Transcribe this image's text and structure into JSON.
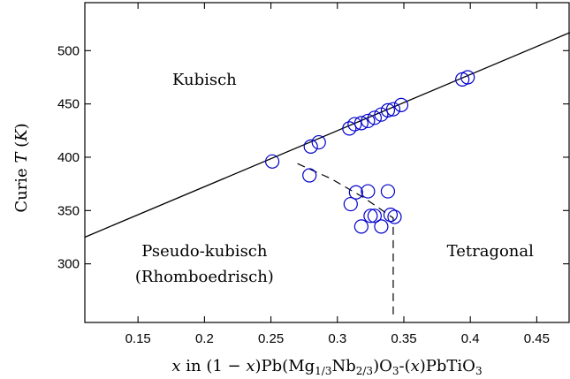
{
  "chart_data": {
    "type": "scatter",
    "xlim": [
      0.11,
      0.475
    ],
    "ylim": [
      245,
      545
    ],
    "grid": false,
    "x_ticks": [
      0.15,
      0.2,
      0.25,
      0.3,
      0.35,
      0.4,
      0.45
    ],
    "y_ticks": [
      300,
      350,
      400,
      450,
      500
    ],
    "x_tick_labels": [
      "0.15",
      "0.2",
      "0.25",
      "0.3",
      "0.35",
      "0.4",
      "0.45"
    ],
    "y_tick_labels": [
      "300",
      "350",
      "400",
      "450",
      "500"
    ],
    "xlabel": {
      "p1": "x",
      "p2": " in (1 − ",
      "p3": "x",
      "p4": ")Pb(Mg",
      "p5": "1/3",
      "p6": "Nb",
      "p7": "2/3",
      "p8": ")O",
      "p9": "3",
      "p10": "-(",
      "p11": "x",
      "p12": ")PbTiO",
      "p13": "3"
    },
    "ylabel": {
      "p1": "Curie ",
      "p2": "T",
      "p3": " (",
      "p4": "K",
      "p5": ")"
    },
    "regions": [
      {
        "label": "Kubisch",
        "x": 0.2,
        "y": 468
      },
      {
        "label": "Pseudo-kubisch",
        "x": 0.2,
        "y": 307
      },
      {
        "label": "(Rhomboedrisch)",
        "x": 0.2,
        "y": 283
      },
      {
        "label": "Tetragonal",
        "x": 0.415,
        "y": 307
      }
    ],
    "solid_line": {
      "x": [
        0.11,
        0.475
      ],
      "y": [
        325,
        517
      ]
    },
    "dashed_boundary": {
      "x": [
        0.27,
        0.295,
        0.32,
        0.342,
        0.342
      ],
      "y": [
        394,
        380,
        362,
        343,
        250
      ]
    },
    "points": [
      {
        "x": 0.251,
        "y": 396
      },
      {
        "x": 0.279,
        "y": 383
      },
      {
        "x": 0.28,
        "y": 410
      },
      {
        "x": 0.286,
        "y": 414
      },
      {
        "x": 0.309,
        "y": 427
      },
      {
        "x": 0.313,
        "y": 431
      },
      {
        "x": 0.318,
        "y": 432
      },
      {
        "x": 0.323,
        "y": 434
      },
      {
        "x": 0.328,
        "y": 437
      },
      {
        "x": 0.333,
        "y": 440
      },
      {
        "x": 0.338,
        "y": 444
      },
      {
        "x": 0.342,
        "y": 445
      },
      {
        "x": 0.348,
        "y": 449
      },
      {
        "x": 0.394,
        "y": 473
      },
      {
        "x": 0.398,
        "y": 475
      },
      {
        "x": 0.31,
        "y": 356
      },
      {
        "x": 0.314,
        "y": 367
      },
      {
        "x": 0.323,
        "y": 368
      },
      {
        "x": 0.338,
        "y": 368
      },
      {
        "x": 0.325,
        "y": 345
      },
      {
        "x": 0.328,
        "y": 345
      },
      {
        "x": 0.34,
        "y": 346
      },
      {
        "x": 0.343,
        "y": 344
      },
      {
        "x": 0.318,
        "y": 335
      },
      {
        "x": 0.333,
        "y": 335
      }
    ],
    "colors": {
      "points": "#0000cc",
      "lines": "#000000",
      "axes": "#000000"
    }
  }
}
